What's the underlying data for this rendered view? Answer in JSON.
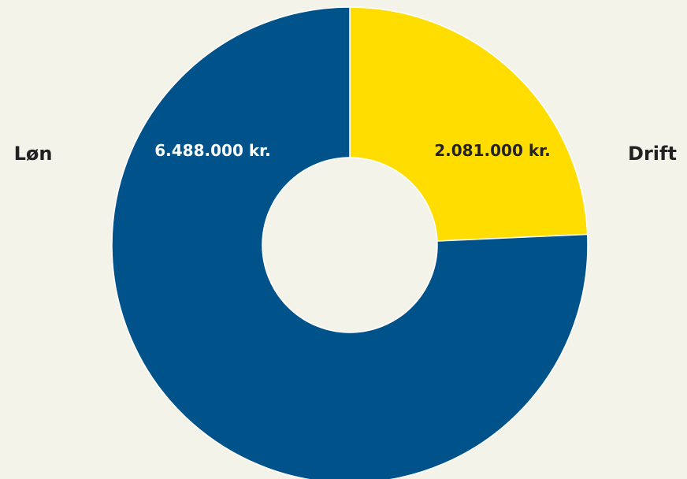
{
  "chart_data": {
    "type": "pie",
    "donut": true,
    "slices": [
      {
        "name": "Drift",
        "value": 2081000,
        "label": "2.081.000 kr.",
        "color": "#FFDD00",
        "label_color": "#222222"
      },
      {
        "name": "Løn",
        "value": 6488000,
        "label": "6.488.000 kr.",
        "color": "#00528A",
        "label_color": "#FFFFFF"
      }
    ],
    "background": "#F4F3EA",
    "separator_color": "#FFFFFF"
  }
}
